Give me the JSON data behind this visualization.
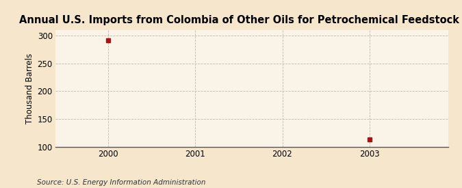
{
  "title": "Annual U.S. Imports from Colombia of Other Oils for Petrochemical Feedstock Use",
  "ylabel": "Thousand Barrels",
  "source": "Source: U.S. Energy Information Administration",
  "background_color": "#f5e6cc",
  "plot_background_color": "#faf4e8",
  "data_points": [
    {
      "year": 2000,
      "value": 291
    },
    {
      "year": 2003,
      "value": 113
    }
  ],
  "xlim": [
    1999.4,
    2003.9
  ],
  "ylim": [
    100,
    310
  ],
  "yticks": [
    100,
    150,
    200,
    250,
    300
  ],
  "xticks": [
    2000,
    2001,
    2002,
    2003
  ],
  "marker_color": "#aa1111",
  "marker_size": 4,
  "grid_color": "#bbbbaa",
  "grid_linestyle": "--",
  "title_fontsize": 10.5,
  "label_fontsize": 8.5,
  "tick_fontsize": 8.5,
  "source_fontsize": 7.5
}
